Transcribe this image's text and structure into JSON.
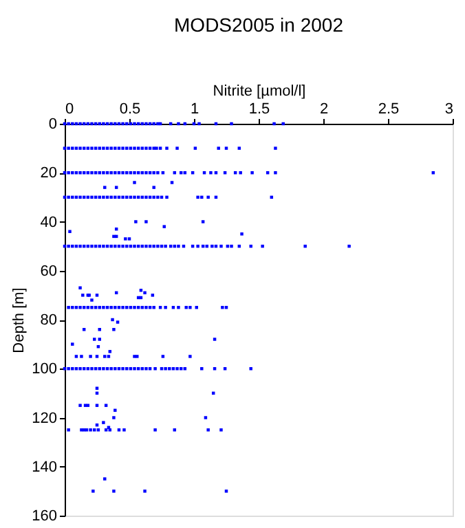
{
  "chart_data": {
    "type": "scatter",
    "title": "MODS2005 in 2002",
    "xlabel": "Nitrite [µmol/l]",
    "ylabel": "Depth [m]",
    "xlim": [
      0,
      3
    ],
    "xticks": [
      0,
      0.5,
      1,
      1.5,
      2,
      2.5,
      3
    ],
    "ylim": [
      160,
      0
    ],
    "yticks": [
      0,
      20,
      40,
      60,
      80,
      100,
      120,
      140,
      160
    ],
    "grid": false,
    "marker": "square",
    "series": [
      {
        "color": "#0000ff",
        "x": [
          0,
          0.03,
          0.06,
          0.09,
          0.12,
          0.15,
          0.18,
          0.21,
          0.24,
          0.27,
          0.3,
          0.33,
          0.36,
          0.39,
          0.42,
          0.45,
          0.48,
          0.51,
          0.54,
          0.57,
          0.6,
          0.63,
          0.66,
          0.69,
          0.72,
          0.74,
          0.82,
          0.88,
          0.93,
          1.0,
          1.04,
          1.17,
          1.29,
          1.62,
          1.69,
          0,
          0.03,
          0.06,
          0.09,
          0.12,
          0.15,
          0.18,
          0.21,
          0.24,
          0.27,
          0.3,
          0.33,
          0.36,
          0.39,
          0.42,
          0.45,
          0.48,
          0.51,
          0.54,
          0.57,
          0.6,
          0.63,
          0.66,
          0.69,
          0.71,
          0.74,
          0.79,
          0.87,
          1.01,
          1.19,
          1.25,
          1.35,
          1.63,
          0,
          0.03,
          0.06,
          0.09,
          0.12,
          0.15,
          0.18,
          0.21,
          0.24,
          0.27,
          0.3,
          0.33,
          0.36,
          0.39,
          0.42,
          0.45,
          0.48,
          0.51,
          0.54,
          0.57,
          0.6,
          0.63,
          0.66,
          0.69,
          0.72,
          0.76,
          0.85,
          0.9,
          0.93,
          0.99,
          1.08,
          1.13,
          1.17,
          1.24,
          1.32,
          1.36,
          1.45,
          1.57,
          1.63,
          2.85,
          0.31,
          0.4,
          0.54,
          0.69,
          0.83,
          0,
          0.03,
          0.06,
          0.09,
          0.12,
          0.15,
          0.18,
          0.21,
          0.24,
          0.27,
          0.3,
          0.33,
          0.36,
          0.39,
          0.42,
          0.45,
          0.48,
          0.51,
          0.54,
          0.57,
          0.6,
          0.63,
          0.66,
          0.69,
          0.72,
          0.75,
          0.79,
          1.03,
          1.06,
          1.11,
          1.17,
          1.6,
          0.55,
          0.63,
          1.07,
          0.77,
          0.4,
          0.04,
          1.37,
          0.38,
          0.4,
          0.47,
          0.5,
          0,
          0.03,
          0.06,
          0.09,
          0.12,
          0.15,
          0.18,
          0.21,
          0.24,
          0.27,
          0.3,
          0.33,
          0.36,
          0.39,
          0.42,
          0.45,
          0.48,
          0.51,
          0.54,
          0.57,
          0.6,
          0.63,
          0.66,
          0.69,
          0.72,
          0.75,
          0.78,
          0.82,
          0.85,
          0.88,
          0.92,
          0.99,
          1.03,
          1.07,
          1.1,
          1.14,
          1.17,
          1.21,
          1.26,
          1.29,
          1.35,
          1.44,
          1.53,
          1.86,
          2.2,
          0.12,
          0.59,
          0.4,
          0.62,
          0.14,
          0.18,
          0.19,
          0.25,
          0.68,
          0.57,
          0.59,
          0.21,
          0.03,
          0.06,
          0.09,
          0.12,
          0.15,
          0.18,
          0.21,
          0.24,
          0.27,
          0.3,
          0.33,
          0.36,
          0.39,
          0.42,
          0.45,
          0.48,
          0.51,
          0.54,
          0.57,
          0.6,
          0.63,
          0.66,
          0.69,
          0.74,
          0.78,
          0.84,
          0.88,
          0.94,
          0.97,
          1.02,
          1.22,
          1.25,
          0.37,
          0.41,
          0.15,
          0.27,
          0.38,
          0.06,
          0.23,
          0.27,
          1.16,
          0.26,
          0.35,
          0.09,
          0.13,
          0.2,
          0.25,
          0.31,
          0.34,
          0.54,
          0.56,
          0.76,
          0.97,
          0,
          0.03,
          0.06,
          0.09,
          0.12,
          0.15,
          0.18,
          0.21,
          0.24,
          0.27,
          0.3,
          0.33,
          0.36,
          0.39,
          0.42,
          0.45,
          0.48,
          0.51,
          0.54,
          0.57,
          0.6,
          0.63,
          0.66,
          0.7,
          0.75,
          0.78,
          0.81,
          0.84,
          0.87,
          0.9,
          0.93,
          1.06,
          1.16,
          1.24,
          1.44,
          0.25,
          0.25,
          1.15,
          0.12,
          0.16,
          0.18,
          0.25,
          0.32,
          0.39,
          0.38,
          1.09,
          0.25,
          0.3,
          0.34,
          0.03,
          0.13,
          0.15,
          0.17,
          0.2,
          0.23,
          0.26,
          0.32,
          0.35,
          0.42,
          0.46,
          0.7,
          0.85,
          1.11,
          1.21,
          0.31,
          0.22,
          0.38,
          0.62,
          1.25
        ],
        "values": [
          0,
          0,
          0,
          0,
          0,
          0,
          0,
          0,
          0,
          0,
          0,
          0,
          0,
          0,
          0,
          0,
          0,
          0,
          0,
          0,
          0,
          0,
          0,
          0,
          0,
          0,
          0,
          0,
          0,
          0,
          0,
          0,
          0,
          0,
          0,
          10,
          10,
          10,
          10,
          10,
          10,
          10,
          10,
          10,
          10,
          10,
          10,
          10,
          10,
          10,
          10,
          10,
          10,
          10,
          10,
          10,
          10,
          10,
          10,
          10,
          10,
          10,
          10,
          10,
          10,
          10,
          10,
          10,
          20,
          20,
          20,
          20,
          20,
          20,
          20,
          20,
          20,
          20,
          20,
          20,
          20,
          20,
          20,
          20,
          20,
          20,
          20,
          20,
          20,
          20,
          20,
          20,
          20,
          20,
          20,
          20,
          20,
          20,
          20,
          20,
          20,
          20,
          20,
          20,
          20,
          20,
          20,
          20,
          26,
          26,
          24,
          26,
          24,
          30,
          30,
          30,
          30,
          30,
          30,
          30,
          30,
          30,
          30,
          30,
          30,
          30,
          30,
          30,
          30,
          30,
          30,
          30,
          30,
          30,
          30,
          30,
          30,
          30,
          30,
          30,
          30,
          30,
          30,
          30,
          30,
          40,
          40,
          40,
          42,
          43,
          44,
          45,
          46,
          46,
          47,
          47,
          50,
          50,
          50,
          50,
          50,
          50,
          50,
          50,
          50,
          50,
          50,
          50,
          50,
          50,
          50,
          50,
          50,
          50,
          50,
          50,
          50,
          50,
          50,
          50,
          50,
          50,
          50,
          50,
          50,
          50,
          50,
          50,
          50,
          50,
          50,
          50,
          50,
          50,
          50,
          50,
          50,
          50,
          50,
          50,
          50,
          67,
          68,
          69,
          69,
          70,
          70,
          70,
          70,
          70,
          71,
          71,
          72,
          75,
          75,
          75,
          75,
          75,
          75,
          75,
          75,
          75,
          75,
          75,
          75,
          75,
          75,
          75,
          75,
          75,
          75,
          75,
          75,
          75,
          75,
          75,
          75,
          75,
          75,
          75,
          75,
          75,
          75,
          75,
          75,
          80,
          81,
          84,
          84,
          84,
          90,
          88,
          88,
          88,
          91,
          93,
          95,
          95,
          95,
          95,
          95,
          95,
          95,
          95,
          95,
          95,
          100,
          100,
          100,
          100,
          100,
          100,
          100,
          100,
          100,
          100,
          100,
          100,
          100,
          100,
          100,
          100,
          100,
          100,
          100,
          100,
          100,
          100,
          100,
          100,
          100,
          100,
          100,
          100,
          100,
          100,
          100,
          100,
          100,
          100,
          100,
          108,
          110,
          110,
          115,
          115,
          115,
          115,
          115,
          117,
          120,
          120,
          123,
          122,
          124,
          125,
          125,
          125,
          125,
          125,
          125,
          125,
          125,
          125,
          125,
          125,
          125,
          125,
          125,
          125,
          145,
          150,
          150,
          150,
          150
        ]
      }
    ]
  }
}
